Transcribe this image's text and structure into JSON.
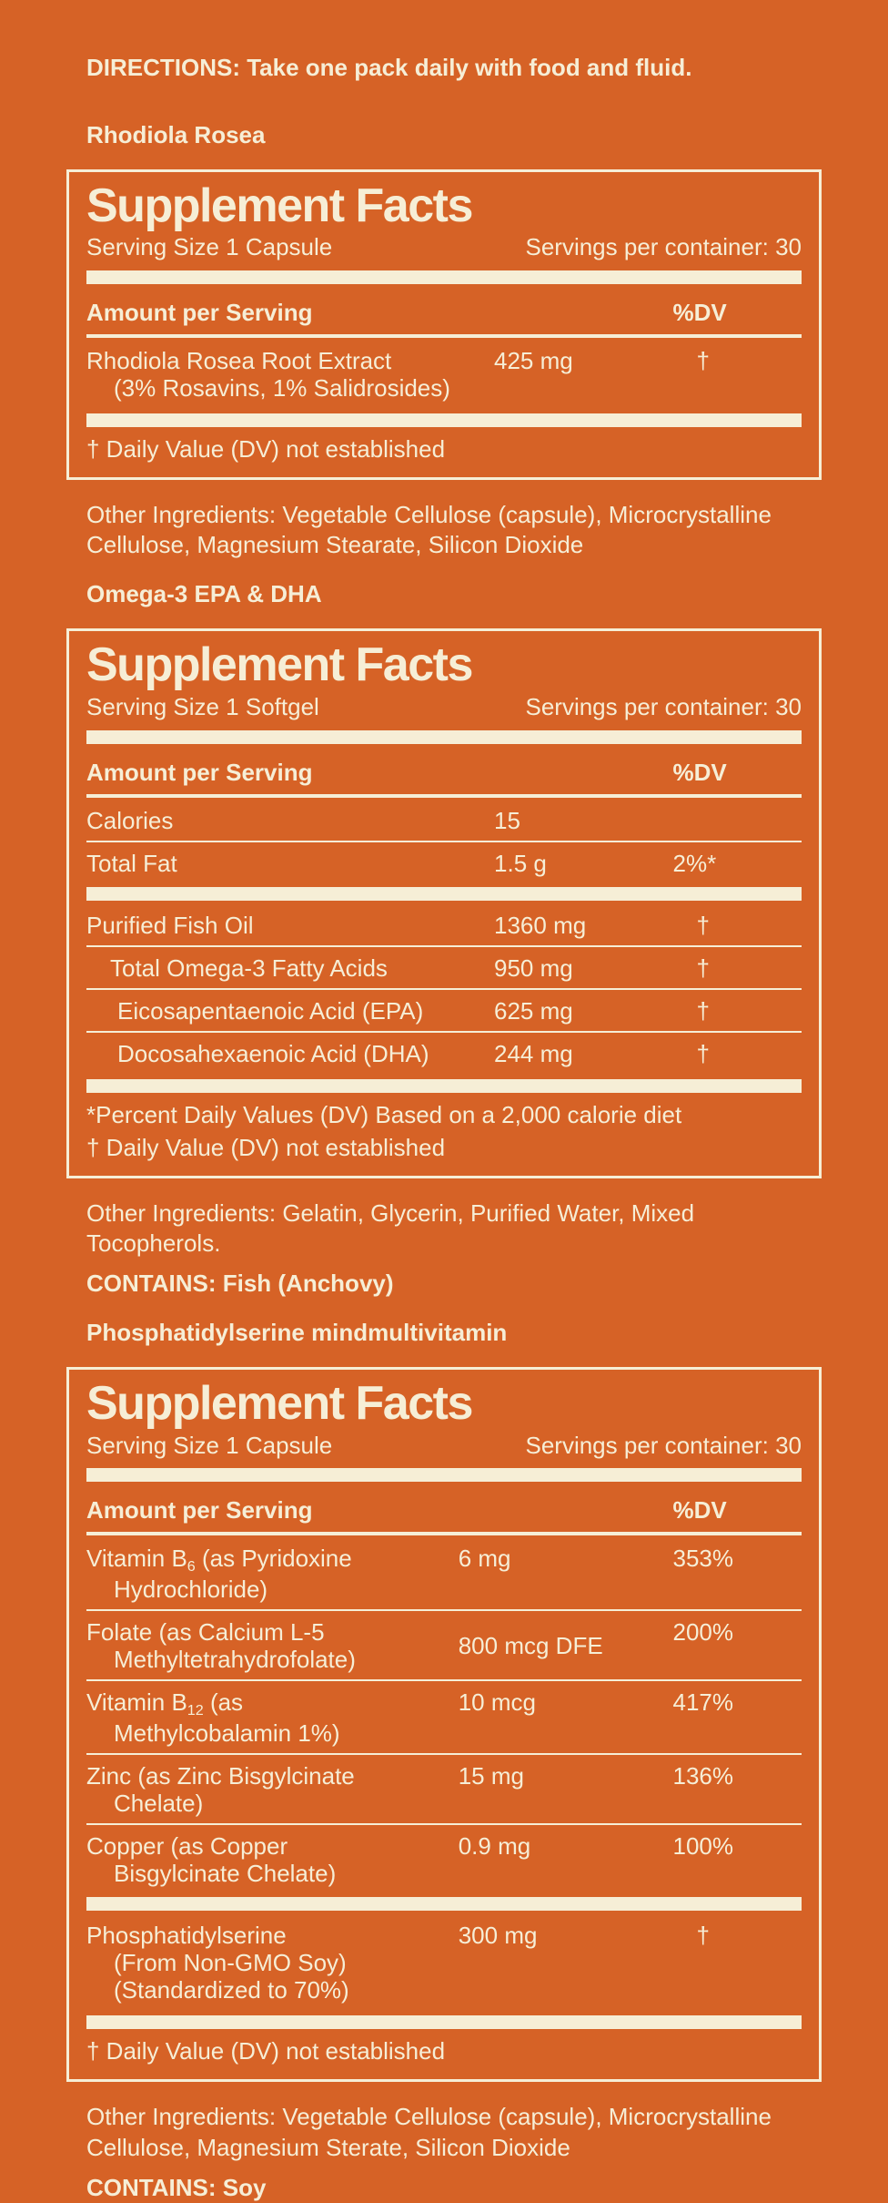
{
  "page": {
    "bg_color": "#D66226",
    "text_color": "#F6EED6",
    "directions": "DIRECTIONS: Take one pack daily with food and fluid."
  },
  "sections": [
    {
      "heading": "Rhodiola Rosea",
      "panel": {
        "title": "Supplement Facts",
        "serving_size": "Serving Size 1 Capsule",
        "servings_per_container": "Servings per container: 30",
        "amount_header": "Amount per Serving",
        "dv_header": "%DV",
        "rows": [
          {
            "name_lines": [
              [
                {
                  "t": "Rhodiola Rosea Root Extract"
                }
              ],
              [
                {
                  "t": "(3% Rosavins, 1% Salidrosides)"
                }
              ]
            ],
            "amount": "425 mg",
            "dv": "†"
          }
        ],
        "footnotes": [
          "† Daily Value (DV) not established"
        ]
      },
      "other_ingredients": "Other Ingredients: Vegetable Cellulose (capsule), Microcrystalline Cellulose, Magnesium Stearate, Silicon Dioxide",
      "contains": null
    },
    {
      "heading": "Omega-3 EPA & DHA",
      "panel": {
        "title": "Supplement Facts",
        "serving_size": "Serving Size 1 Softgel",
        "servings_per_container": "Servings per container: 30",
        "amount_header": "Amount per Serving",
        "dv_header": "%DV",
        "rows": [
          {
            "name_lines": [
              [
                {
                  "t": "Calories"
                }
              ]
            ],
            "amount": "15",
            "dv": ""
          },
          {
            "name_lines": [
              [
                {
                  "t": "Total Fat"
                }
              ]
            ],
            "amount": "1.5 g",
            "dv": "2%*"
          },
          {
            "name_lines": [
              [
                {
                  "t": "Purified Fish Oil"
                }
              ]
            ],
            "amount": "1360 mg",
            "dv": "†",
            "sep": "thick"
          },
          {
            "name_lines": [
              [
                {
                  "t": "Total Omega-3 Fatty Acids"
                }
              ]
            ],
            "amount": "950 mg",
            "dv": "†",
            "indent": 1
          },
          {
            "name_lines": [
              [
                {
                  "t": "Eicosapentaenoic Acid (EPA)"
                }
              ]
            ],
            "amount": "625 mg",
            "dv": "†",
            "indent": 2
          },
          {
            "name_lines": [
              [
                {
                  "t": "Docosahexaenoic Acid (DHA)"
                }
              ]
            ],
            "amount": "244 mg",
            "dv": "†",
            "indent": 2
          }
        ],
        "footnotes": [
          "*Percent Daily Values (DV) Based on a 2,000 calorie diet",
          "† Daily Value (DV) not established"
        ]
      },
      "other_ingredients": "Other Ingredients: Gelatin, Glycerin, Purified Water, Mixed Tocopherols.",
      "contains": "CONTAINS: Fish (Anchovy)"
    },
    {
      "heading": "Phosphatidylserine mindmultivitamin",
      "panel": {
        "title": "Supplement Facts",
        "serving_size": "Serving Size 1 Capsule",
        "servings_per_container": "Servings per container: 30",
        "amount_header": "Amount per Serving",
        "dv_header": "%DV",
        "rows": [
          {
            "name_lines": [
              [
                {
                  "t": "Vitamin B"
                },
                {
                  "t": "6",
                  "sub": true
                },
                {
                  "t": " (as Pyridoxine"
                }
              ],
              [
                {
                  "t": "Hydrochloride)"
                }
              ]
            ],
            "amount": "6 mg",
            "dv": "353%"
          },
          {
            "name_lines": [
              [
                {
                  "t": "Folate (as Calcium L-5"
                }
              ],
              [
                {
                  "t": "Methyltetrahydrofolate)"
                }
              ]
            ],
            "amount": "800 mcg DFE",
            "dv": "200%",
            "amount_middle": true
          },
          {
            "name_lines": [
              [
                {
                  "t": "Vitamin B"
                },
                {
                  "t": "12",
                  "sub": true
                },
                {
                  "t": " (as"
                }
              ],
              [
                {
                  "t": "Methylcobalamin 1%)"
                }
              ]
            ],
            "amount": "10 mcg",
            "dv": "417%"
          },
          {
            "name_lines": [
              [
                {
                  "t": "Zinc (as Zinc Bisgylcinate"
                }
              ],
              [
                {
                  "t": "Chelate)"
                }
              ]
            ],
            "amount": "15 mg",
            "dv": "136%"
          },
          {
            "name_lines": [
              [
                {
                  "t": "Copper (as Copper"
                }
              ],
              [
                {
                  "t": "Bisgylcinate Chelate)"
                }
              ]
            ],
            "amount": "0.9 mg",
            "dv": "100%"
          },
          {
            "name_lines": [
              [
                {
                  "t": "Phosphatidylserine"
                }
              ],
              [
                {
                  "t": "(From Non-GMO Soy)"
                }
              ],
              [
                {
                  "t": "(Standardized to 70%)"
                }
              ]
            ],
            "amount": "300 mg",
            "dv": "†",
            "sep": "thick"
          }
        ],
        "footnotes": [
          "† Daily Value (DV) not established"
        ]
      },
      "other_ingredients": "Other Ingredients: Vegetable Cellulose (capsule), Microcrystalline Cellulose, Magnesium Sterate, Silicon Dioxide",
      "contains": "CONTAINS: Soy"
    }
  ]
}
